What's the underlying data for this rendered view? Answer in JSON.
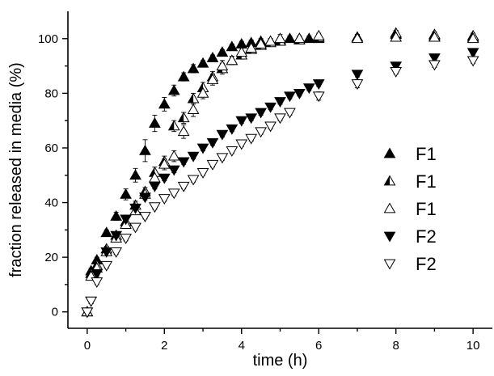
{
  "chart_data": {
    "type": "scatter",
    "title": "",
    "xlabel": "time  (h)",
    "ylabel": "fraction released in media (%)",
    "xlim": [
      -0.5,
      10.5
    ],
    "ylim": [
      -6,
      110
    ],
    "x_ticks": [
      0,
      2,
      4,
      6,
      8,
      10
    ],
    "y_ticks": [
      0,
      20,
      40,
      60,
      80,
      100
    ],
    "grid": false,
    "legend_position": "right",
    "series": [
      {
        "name": "F1",
        "marker": "triangle-up",
        "fill": "filled",
        "points": [
          [
            0,
            0
          ],
          [
            0.1,
            15
          ],
          [
            0.25,
            19
          ],
          [
            0.5,
            29
          ],
          [
            0.75,
            35
          ],
          [
            1.0,
            43
          ],
          [
            1.25,
            50
          ],
          [
            1.5,
            59
          ],
          [
            1.75,
            69
          ],
          [
            2.0,
            76
          ],
          [
            2.25,
            81
          ],
          [
            2.5,
            86
          ],
          [
            2.75,
            89
          ],
          [
            3.0,
            91
          ],
          [
            3.25,
            93
          ],
          [
            3.5,
            95
          ],
          [
            3.75,
            97
          ],
          [
            4.0,
            98
          ],
          [
            4.25,
            98.5
          ],
          [
            4.5,
            99
          ],
          [
            4.75,
            99
          ],
          [
            5.0,
            99.5
          ],
          [
            5.25,
            100
          ],
          [
            5.5,
            100
          ],
          [
            5.75,
            100
          ],
          [
            6.0,
            100
          ],
          [
            7.0,
            100.5
          ],
          [
            8.0,
            101.5
          ],
          [
            9.0,
            101
          ],
          [
            10.0,
            100.5
          ]
        ],
        "errors": [
          0,
          1,
          1,
          1,
          1.5,
          2,
          2.5,
          4,
          3,
          2.5,
          2,
          1.5,
          1.5,
          1,
          1,
          1,
          1,
          1,
          1,
          1,
          1,
          1,
          1,
          1,
          1,
          1,
          1,
          1,
          1,
          1
        ]
      },
      {
        "name": "F1",
        "marker": "triangle-up",
        "fill": "half",
        "points": [
          [
            0,
            0
          ],
          [
            0.1,
            14
          ],
          [
            0.25,
            17
          ],
          [
            0.5,
            23
          ],
          [
            0.75,
            28
          ],
          [
            1.0,
            33
          ],
          [
            1.25,
            39
          ],
          [
            1.5,
            44
          ],
          [
            1.75,
            51
          ],
          [
            2.0,
            55
          ],
          [
            2.25,
            68
          ],
          [
            2.5,
            71
          ],
          [
            2.75,
            78
          ],
          [
            3.0,
            82
          ],
          [
            3.25,
            86
          ],
          [
            3.5,
            89
          ],
          [
            3.75,
            92
          ],
          [
            4.0,
            94
          ],
          [
            4.25,
            96
          ],
          [
            4.5,
            97.5
          ],
          [
            4.75,
            98.5
          ],
          [
            5.0,
            99
          ],
          [
            5.5,
            99.5
          ],
          [
            6.0,
            100.5
          ],
          [
            7.0,
            100.5
          ],
          [
            8.0,
            102
          ],
          [
            9.0,
            101.5
          ],
          [
            10.0,
            101
          ]
        ],
        "errors": [
          0,
          1,
          1,
          1,
          1,
          1,
          1.5,
          1.5,
          2,
          2,
          2,
          2,
          2,
          2,
          2,
          2,
          1.5,
          1.5,
          1,
          1,
          1,
          1,
          1,
          1,
          1,
          1,
          1,
          1
        ]
      },
      {
        "name": "F1",
        "marker": "triangle-up",
        "fill": "open",
        "points": [
          [
            0,
            0
          ],
          [
            0.1,
            13
          ],
          [
            0.25,
            16
          ],
          [
            0.5,
            22
          ],
          [
            0.75,
            27
          ],
          [
            1.0,
            32
          ],
          [
            1.25,
            37
          ],
          [
            1.5,
            43
          ],
          [
            1.75,
            49
          ],
          [
            2.0,
            54
          ],
          [
            2.25,
            57
          ],
          [
            2.5,
            66
          ],
          [
            2.75,
            74
          ],
          [
            3.0,
            80
          ],
          [
            3.25,
            85
          ],
          [
            3.5,
            90
          ],
          [
            3.75,
            92
          ],
          [
            4.0,
            95
          ],
          [
            4.25,
            96.5
          ],
          [
            4.5,
            98
          ],
          [
            4.75,
            99
          ],
          [
            5.0,
            100
          ],
          [
            5.5,
            100
          ],
          [
            6.0,
            101
          ],
          [
            7.0,
            100
          ],
          [
            8.0,
            100.5
          ],
          [
            9.0,
            100.5
          ],
          [
            10.0,
            100
          ]
        ],
        "errors": [
          0,
          1,
          1,
          1,
          1,
          1,
          1,
          1.5,
          1.5,
          2,
          2,
          2.5,
          2.5,
          2,
          2,
          2,
          1.5,
          1.5,
          1.5,
          1,
          1,
          1.5,
          1,
          1,
          1,
          1,
          1,
          1
        ]
      },
      {
        "name": "F2",
        "marker": "triangle-down",
        "fill": "filled",
        "points": [
          [
            0,
            0
          ],
          [
            0.1,
            4
          ],
          [
            0.25,
            14
          ],
          [
            0.5,
            22
          ],
          [
            0.75,
            28
          ],
          [
            1.0,
            34
          ],
          [
            1.25,
            38
          ],
          [
            1.5,
            42
          ],
          [
            1.75,
            46
          ],
          [
            2.0,
            49
          ],
          [
            2.25,
            52
          ],
          [
            2.5,
            55
          ],
          [
            2.75,
            57
          ],
          [
            3.0,
            60
          ],
          [
            3.25,
            62
          ],
          [
            3.5,
            65
          ],
          [
            3.75,
            67
          ],
          [
            4.0,
            70
          ],
          [
            4.25,
            71
          ],
          [
            4.5,
            73
          ],
          [
            4.75,
            75
          ],
          [
            5.0,
            77
          ],
          [
            5.25,
            79
          ],
          [
            5.5,
            80
          ],
          [
            5.75,
            82
          ],
          [
            6.0,
            83.5
          ],
          [
            7.0,
            87
          ],
          [
            8.0,
            90
          ],
          [
            9.0,
            93
          ],
          [
            10.0,
            95
          ]
        ],
        "errors": [
          0,
          1,
          1,
          1,
          1,
          1,
          1,
          1,
          1,
          1,
          1,
          1,
          1,
          1,
          1,
          1,
          1,
          1,
          1,
          1,
          1,
          1,
          1,
          1,
          1,
          1,
          1,
          1,
          1,
          1
        ]
      },
      {
        "name": "F2",
        "marker": "triangle-down",
        "fill": "open",
        "points": [
          [
            0,
            0
          ],
          [
            0.1,
            4
          ],
          [
            0.25,
            11
          ],
          [
            0.5,
            17
          ],
          [
            0.75,
            22
          ],
          [
            1.0,
            27
          ],
          [
            1.25,
            31
          ],
          [
            1.5,
            35
          ],
          [
            1.75,
            38.5
          ],
          [
            2.0,
            41.5
          ],
          [
            2.25,
            43.5
          ],
          [
            2.5,
            46
          ],
          [
            2.75,
            48.5
          ],
          [
            3.0,
            51
          ],
          [
            3.25,
            54
          ],
          [
            3.5,
            56.5
          ],
          [
            3.75,
            59
          ],
          [
            4.0,
            61.5
          ],
          [
            4.25,
            63.5
          ],
          [
            4.5,
            66
          ],
          [
            4.75,
            68
          ],
          [
            5.0,
            71
          ],
          [
            5.25,
            73
          ],
          [
            6.0,
            79
          ],
          [
            7.0,
            83.5
          ],
          [
            8.0,
            88
          ],
          [
            9.0,
            90.5
          ],
          [
            10.0,
            92
          ]
        ],
        "errors": [
          0,
          1,
          1,
          1,
          1,
          1,
          1,
          1,
          1,
          1,
          1,
          1,
          1,
          1,
          1,
          1,
          1,
          1,
          1,
          1,
          1,
          1,
          1,
          1.5,
          1.5,
          1,
          1,
          1
        ]
      }
    ]
  }
}
